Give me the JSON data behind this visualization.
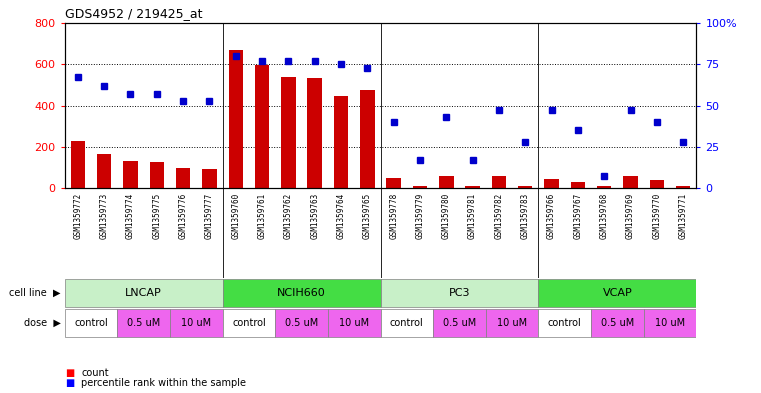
{
  "title": "GDS4952 / 219425_at",
  "samples": [
    "GSM1359772",
    "GSM1359773",
    "GSM1359774",
    "GSM1359775",
    "GSM1359776",
    "GSM1359777",
    "GSM1359760",
    "GSM1359761",
    "GSM1359762",
    "GSM1359763",
    "GSM1359764",
    "GSM1359765",
    "GSM1359778",
    "GSM1359779",
    "GSM1359780",
    "GSM1359781",
    "GSM1359782",
    "GSM1359783",
    "GSM1359766",
    "GSM1359767",
    "GSM1359768",
    "GSM1359769",
    "GSM1359770",
    "GSM1359771"
  ],
  "counts": [
    230,
    165,
    130,
    125,
    95,
    90,
    670,
    595,
    540,
    535,
    445,
    475,
    50,
    10,
    60,
    10,
    60,
    10,
    45,
    30,
    10,
    60,
    40,
    10
  ],
  "percentiles": [
    67,
    62,
    57,
    57,
    53,
    53,
    80,
    77,
    77,
    77,
    75,
    73,
    40,
    17,
    43,
    17,
    47,
    28,
    47,
    35,
    7,
    47,
    40,
    28
  ],
  "cell_lines": [
    {
      "name": "LNCAP",
      "start": 0,
      "end": 6,
      "color": "#c8f0c8"
    },
    {
      "name": "NCIH660",
      "start": 6,
      "end": 12,
      "color": "#44dd44"
    },
    {
      "name": "PC3",
      "start": 12,
      "end": 18,
      "color": "#c8f0c8"
    },
    {
      "name": "VCAP",
      "start": 18,
      "end": 24,
      "color": "#44dd44"
    }
  ],
  "dose_groups": [
    {
      "name": "control",
      "start": 0,
      "end": 2,
      "color": "#ffffff"
    },
    {
      "name": "0.5 uM",
      "start": 2,
      "end": 4,
      "color": "#ee66ee"
    },
    {
      "name": "10 uM",
      "start": 4,
      "end": 6,
      "color": "#ee66ee"
    },
    {
      "name": "control",
      "start": 6,
      "end": 8,
      "color": "#ffffff"
    },
    {
      "name": "0.5 uM",
      "start": 8,
      "end": 10,
      "color": "#ee66ee"
    },
    {
      "name": "10 uM",
      "start": 10,
      "end": 12,
      "color": "#ee66ee"
    },
    {
      "name": "control",
      "start": 12,
      "end": 14,
      "color": "#ffffff"
    },
    {
      "name": "0.5 uM",
      "start": 14,
      "end": 16,
      "color": "#ee66ee"
    },
    {
      "name": "10 uM",
      "start": 16,
      "end": 18,
      "color": "#ee66ee"
    },
    {
      "name": "control",
      "start": 18,
      "end": 20,
      "color": "#ffffff"
    },
    {
      "name": "0.5 uM",
      "start": 20,
      "end": 22,
      "color": "#ee66ee"
    },
    {
      "name": "10 uM",
      "start": 22,
      "end": 24,
      "color": "#ee66ee"
    }
  ],
  "bar_color": "#CC0000",
  "scatter_color": "#0000CC",
  "ylim_left": [
    0,
    800
  ],
  "ylim_right": [
    0,
    100
  ],
  "yticks_left": [
    0,
    200,
    400,
    600,
    800
  ],
  "yticks_right": [
    0,
    25,
    50,
    75,
    100
  ],
  "gridlines": [
    200,
    400,
    600
  ],
  "separators": [
    5.5,
    11.5,
    17.5
  ],
  "xticklabel_bg": "#c8c8c8",
  "cell_line_bg": "#d8d8d8",
  "dose_bg": "#d8d8d8"
}
